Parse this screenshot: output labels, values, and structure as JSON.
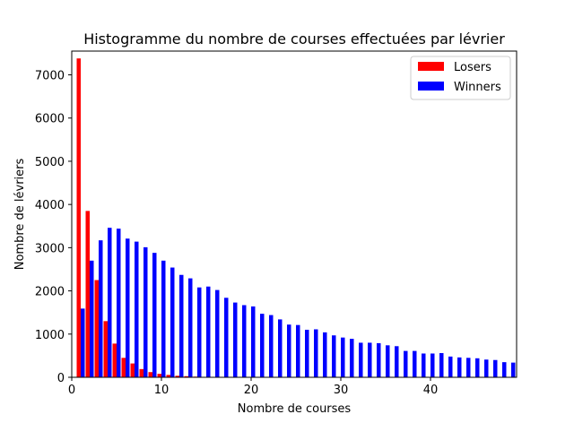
{
  "chart_data": {
    "type": "bar",
    "title": "Histogramme du nombre de courses effectuées par lévrier",
    "xlabel": "Nombre de courses",
    "ylabel": "Nombre de lévriers",
    "xlim": [
      0,
      49.6
    ],
    "ylim": [
      0,
      7550
    ],
    "xticks": [
      0,
      10,
      20,
      30,
      40
    ],
    "yticks": [
      0,
      1000,
      2000,
      3000,
      4000,
      5000,
      6000,
      7000
    ],
    "grid": false,
    "legend_position": "top-right",
    "bar_width": 0.45,
    "series": [
      {
        "name": "Losers",
        "color": "#ff0000",
        "x": [
          1,
          2,
          3,
          4,
          5,
          6,
          7,
          8,
          9,
          10,
          11,
          12,
          13,
          14,
          15,
          16,
          17,
          18,
          19,
          20,
          21,
          22,
          23,
          24,
          25,
          26,
          27,
          28,
          29,
          30,
          31,
          32,
          33,
          34,
          35,
          36,
          37,
          38,
          39,
          40,
          41,
          42,
          43,
          44,
          45,
          46,
          47,
          48,
          49
        ],
        "values": [
          7380,
          3850,
          2250,
          1300,
          780,
          450,
          320,
          190,
          120,
          80,
          55,
          35,
          25,
          15,
          10,
          8,
          5,
          4,
          3,
          2,
          2,
          1,
          1,
          1,
          1,
          0,
          0,
          0,
          0,
          0,
          0,
          0,
          0,
          0,
          0,
          0,
          0,
          0,
          0,
          0,
          0,
          0,
          0,
          0,
          0,
          0,
          0,
          0,
          0
        ]
      },
      {
        "name": "Winners",
        "color": "#0000ff",
        "x": [
          1,
          2,
          3,
          4,
          5,
          6,
          7,
          8,
          9,
          10,
          11,
          12,
          13,
          14,
          15,
          16,
          17,
          18,
          19,
          20,
          21,
          22,
          23,
          24,
          25,
          26,
          27,
          28,
          29,
          30,
          31,
          32,
          33,
          34,
          35,
          36,
          37,
          38,
          39,
          40,
          41,
          42,
          43,
          44,
          45,
          46,
          47,
          48,
          49
        ],
        "values": [
          1590,
          2700,
          3170,
          3460,
          3440,
          3210,
          3140,
          3010,
          2880,
          2700,
          2540,
          2370,
          2290,
          2080,
          2100,
          2020,
          1840,
          1730,
          1670,
          1640,
          1470,
          1440,
          1340,
          1220,
          1210,
          1100,
          1110,
          1040,
          970,
          920,
          890,
          800,
          800,
          790,
          740,
          720,
          610,
          610,
          550,
          550,
          560,
          480,
          460,
          450,
          440,
          410,
          400,
          350,
          340
        ]
      }
    ]
  }
}
